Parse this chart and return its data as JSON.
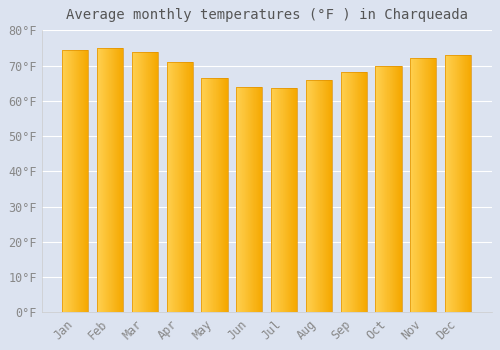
{
  "title": "Average monthly temperatures (°F ) in Charqueada",
  "months": [
    "Jan",
    "Feb",
    "Mar",
    "Apr",
    "May",
    "Jun",
    "Jul",
    "Aug",
    "Sep",
    "Oct",
    "Nov",
    "Dec"
  ],
  "values": [
    74.5,
    75.0,
    73.8,
    71.0,
    66.5,
    64.0,
    63.8,
    66.0,
    68.3,
    69.8,
    72.3,
    73.1
  ],
  "bar_color_left": "#FFD050",
  "bar_color_right": "#F5A800",
  "background_color": "#dce3f0",
  "grid_color": "#ffffff",
  "ylim": [
    0,
    80
  ],
  "yticks": [
    0,
    10,
    20,
    30,
    40,
    50,
    60,
    70,
    80
  ],
  "title_fontsize": 10,
  "tick_fontsize": 8.5,
  "bar_edge_color": "#E09000"
}
